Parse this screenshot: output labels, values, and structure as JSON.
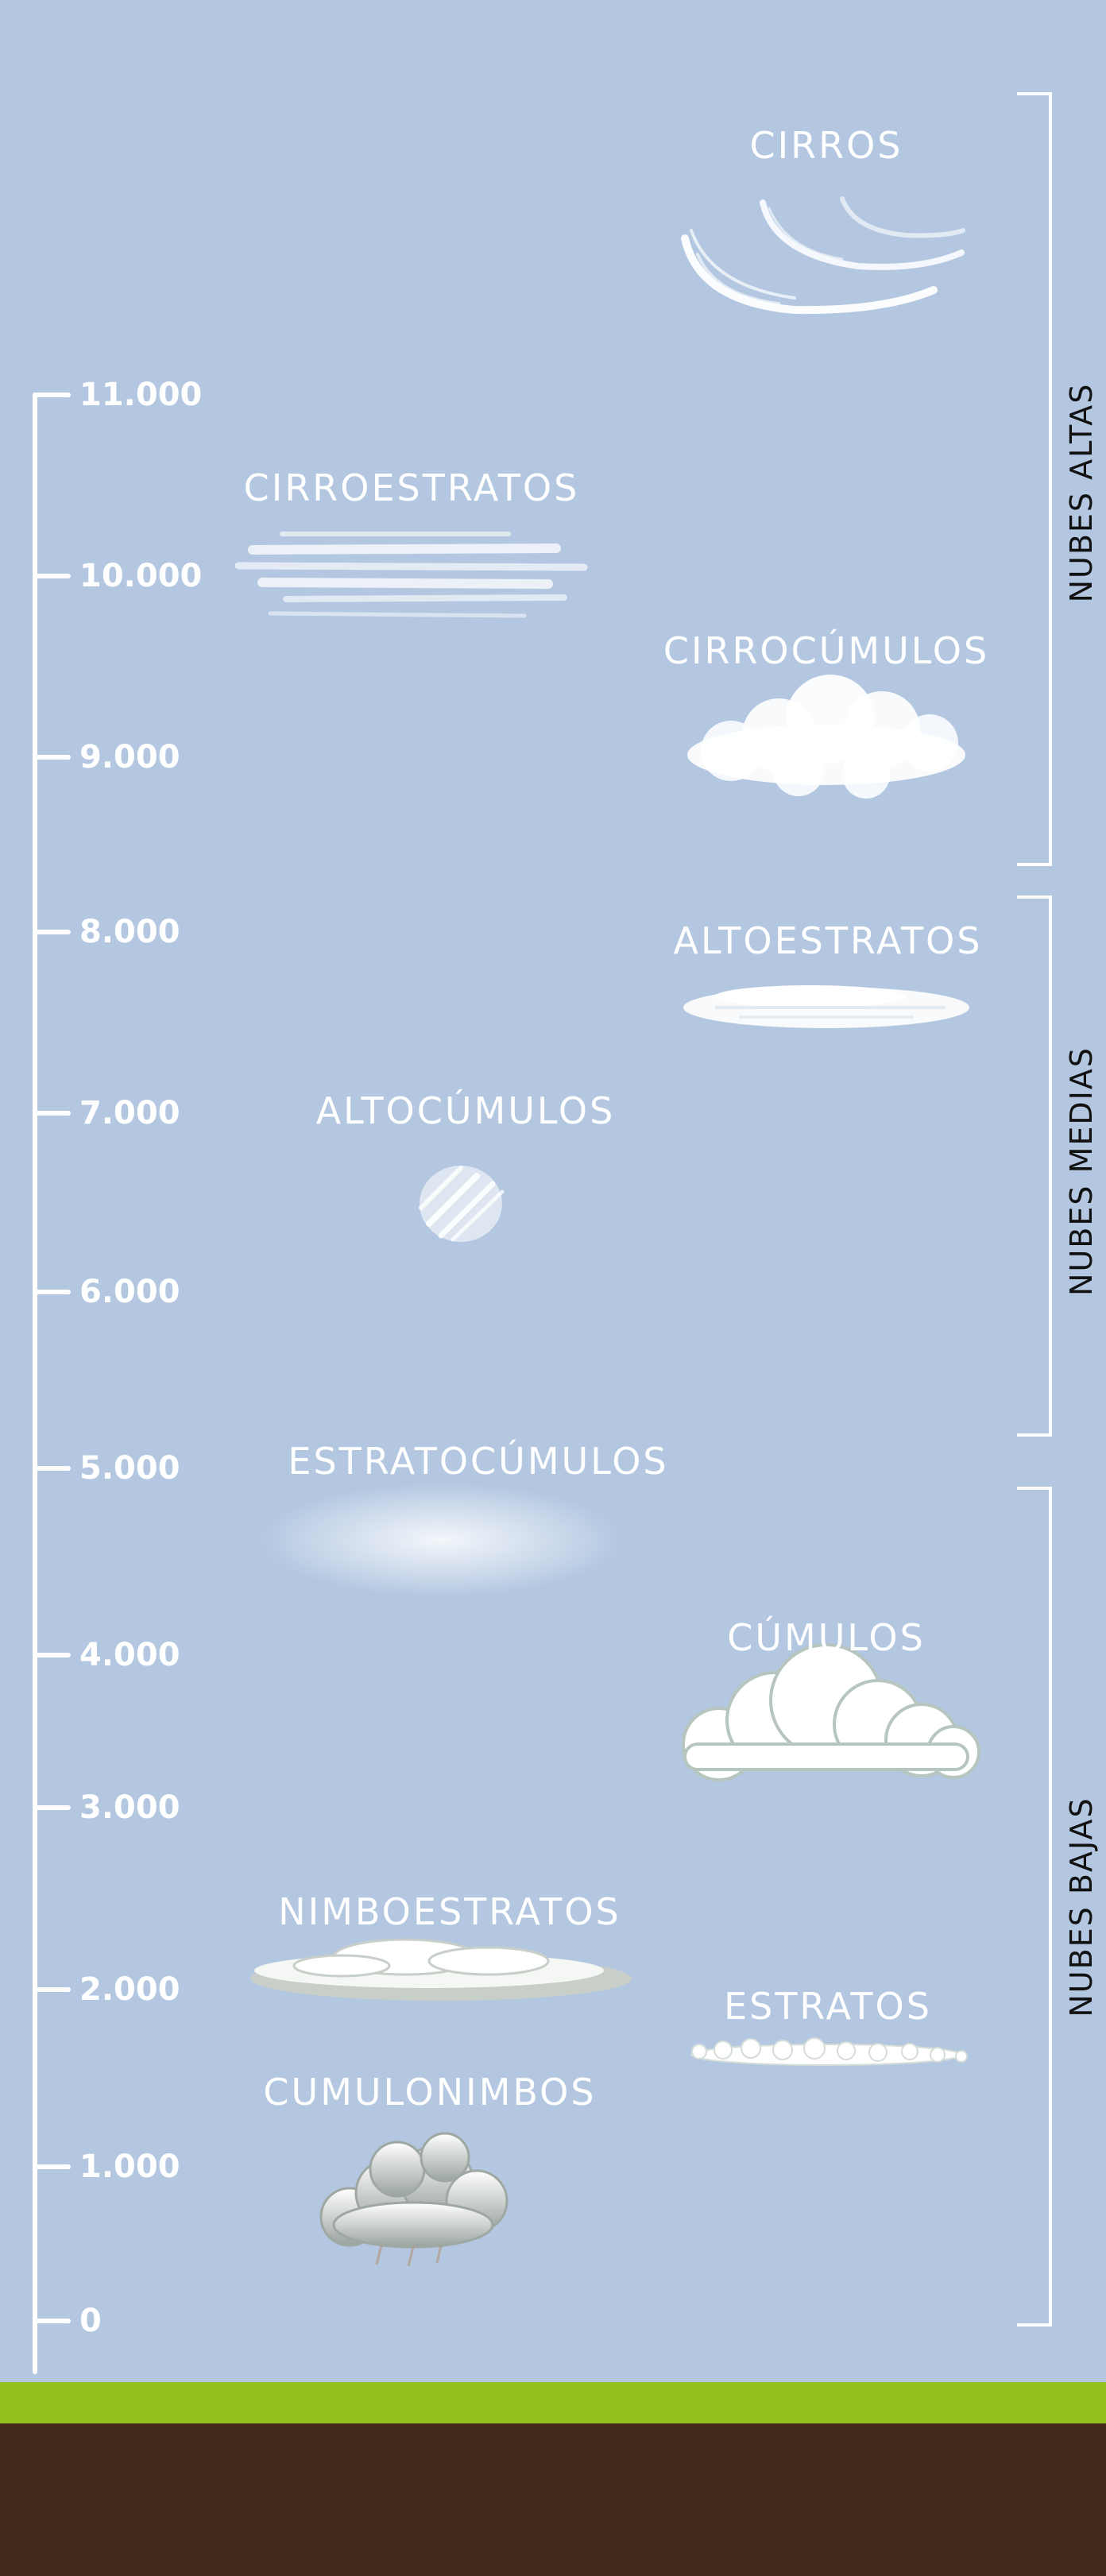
{
  "altitude_axis": {
    "ticks": [
      "0",
      "1.000",
      "2.000",
      "3.000",
      "4.000",
      "5.000",
      "6.000",
      "7.000",
      "8.000",
      "9.000",
      "10.000",
      "11.000"
    ]
  },
  "groups": {
    "high": "NUBES ALTAS",
    "medium": "NUBES MEDIAS",
    "low": "NUBES BAJAS"
  },
  "clouds": {
    "cirros": "CIRROS",
    "cirroestratos": "CIRROESTRATOS",
    "cirrocumulos": "CIRROCÚMULOS",
    "altoestratos": "ALTOESTRATOS",
    "altocumulos": "ALTOCÚMULOS",
    "estratocumulos": "ESTRATOCÚMULOS",
    "cumulos": "CÚMULOS",
    "nimboestratos": "NIMBOESTRATOS",
    "estratos": "ESTRATOS",
    "cumulonimbos": "CUMULONIMBOS"
  },
  "colors": {
    "sky": "#b3c7e1",
    "grass": "#93c01f",
    "soil": "#43291c",
    "axis": "#ffffff",
    "bracket": "#ffffff",
    "group_text": "#111111"
  }
}
